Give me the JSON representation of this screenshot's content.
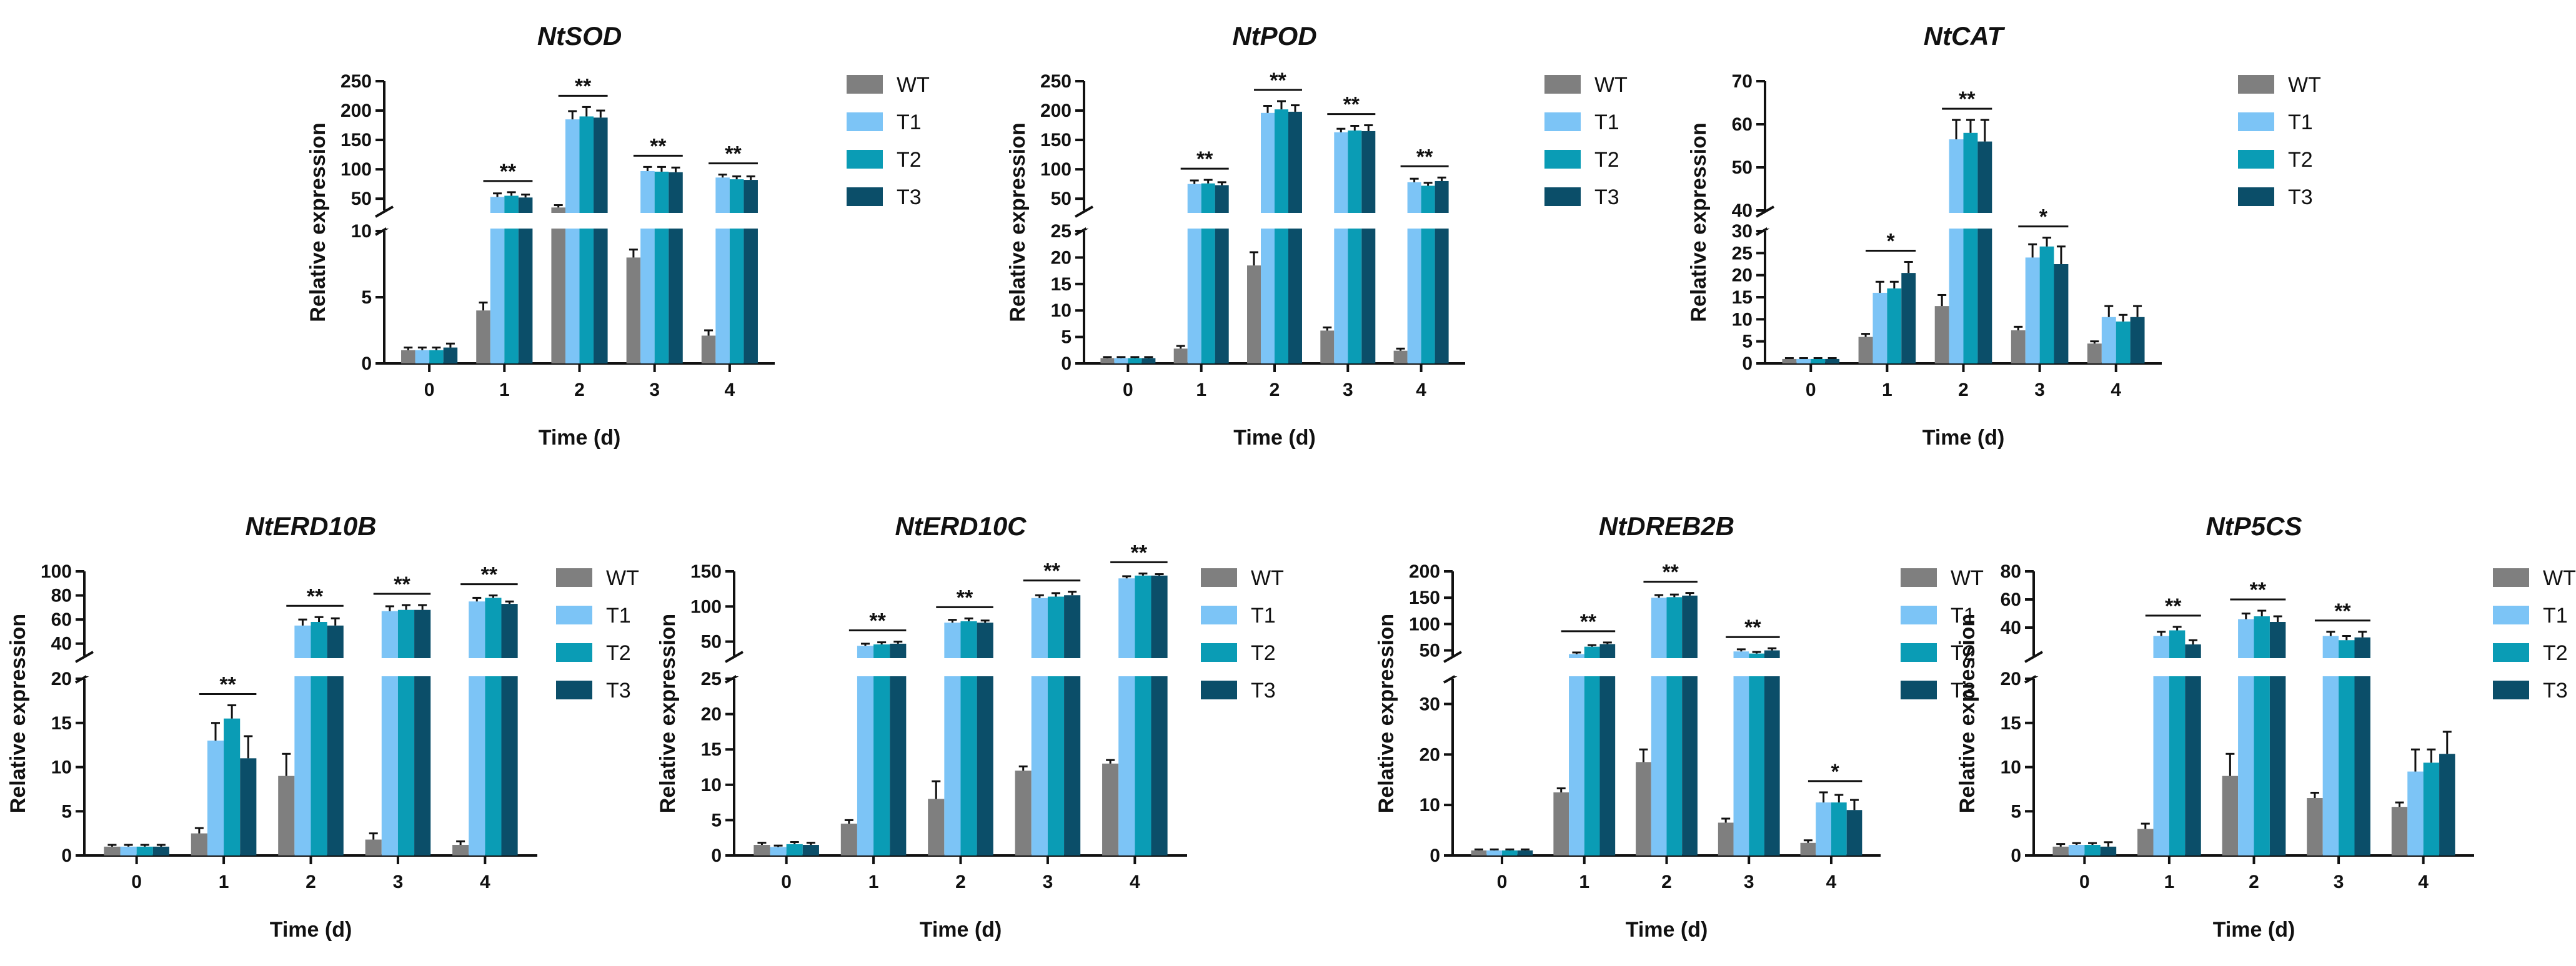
{
  "chart_data": [
    {
      "type": "bar",
      "title": "NtSOD",
      "xlabel": "Time (d)",
      "ylabel": "Relative expression",
      "categories": [
        "0",
        "1",
        "2",
        "3",
        "4"
      ],
      "series": [
        {
          "name": "WT",
          "color": "#7f7f7f",
          "values": [
            1.0,
            4.0,
            35,
            8.0,
            2.1
          ],
          "errors": [
            0.2,
            0.6,
            4,
            0.6,
            0.4
          ]
        },
        {
          "name": "T1",
          "color": "#7cc4f6",
          "values": [
            1.0,
            53,
            185,
            97,
            86
          ],
          "errors": [
            0.2,
            6,
            14,
            7,
            5
          ]
        },
        {
          "name": "T2",
          "color": "#0a9cb5",
          "values": [
            1.0,
            55,
            190,
            96,
            83
          ],
          "errors": [
            0.2,
            6,
            16,
            8,
            5
          ]
        },
        {
          "name": "T3",
          "color": "#0b4e69",
          "values": [
            1.2,
            52,
            188,
            95,
            82
          ],
          "errors": [
            0.3,
            5,
            12,
            8,
            6
          ]
        }
      ],
      "y_break": {
        "lower_range": [
          0,
          10
        ],
        "upper_range": [
          30,
          250
        ]
      },
      "yticks_lower": [
        "0",
        "5",
        "10"
      ],
      "yticks_upper": [
        "50",
        "100",
        "150",
        "200",
        "250"
      ],
      "significance": [
        {
          "category": "1",
          "label": "**"
        },
        {
          "category": "2",
          "label": "**"
        },
        {
          "category": "3",
          "label": "**"
        },
        {
          "category": "4",
          "label": "**"
        }
      ],
      "legend": "right"
    },
    {
      "type": "bar",
      "title": "NtPOD",
      "xlabel": "Time (d)",
      "ylabel": "Relative expression",
      "categories": [
        "0",
        "1",
        "2",
        "3",
        "4"
      ],
      "series": [
        {
          "name": "WT",
          "color": "#7f7f7f",
          "values": [
            1.0,
            2.8,
            18.5,
            6.2,
            2.4
          ],
          "errors": [
            0.2,
            0.5,
            2.5,
            0.6,
            0.4
          ]
        },
        {
          "name": "T1",
          "color": "#7cc4f6",
          "values": [
            1.0,
            75,
            196,
            163,
            78
          ],
          "errors": [
            0.2,
            6,
            12,
            6,
            6
          ]
        },
        {
          "name": "T2",
          "color": "#0a9cb5",
          "values": [
            1.0,
            76,
            202,
            166,
            72
          ],
          "errors": [
            0.2,
            6,
            14,
            8,
            5
          ]
        },
        {
          "name": "T3",
          "color": "#0b4e69",
          "values": [
            1.0,
            73,
            198,
            165,
            80
          ],
          "errors": [
            0.2,
            5,
            11,
            10,
            6
          ]
        }
      ],
      "y_break": {
        "lower_range": [
          0,
          25
        ],
        "upper_range": [
          30,
          250
        ]
      },
      "yticks_lower": [
        "0",
        "5",
        "10",
        "15",
        "20",
        "25"
      ],
      "yticks_upper": [
        "50",
        "100",
        "150",
        "200",
        "250"
      ],
      "significance": [
        {
          "category": "1",
          "label": "**"
        },
        {
          "category": "2",
          "label": "**"
        },
        {
          "category": "3",
          "label": "**"
        },
        {
          "category": "4",
          "label": "**"
        }
      ],
      "legend": "right"
    },
    {
      "type": "bar",
      "title": "NtCAT",
      "xlabel": "Time (d)",
      "ylabel": "Relative expression",
      "categories": [
        "0",
        "1",
        "2",
        "3",
        "4"
      ],
      "series": [
        {
          "name": "WT",
          "color": "#7f7f7f",
          "values": [
            1.0,
            6.0,
            13.0,
            7.5,
            4.5
          ],
          "errors": [
            0.2,
            0.7,
            2.5,
            0.8,
            0.5
          ]
        },
        {
          "name": "T1",
          "color": "#7cc4f6",
          "values": [
            1.0,
            16,
            56.5,
            24,
            10.5
          ],
          "errors": [
            0.2,
            2.5,
            4.5,
            3,
            2.5
          ]
        },
        {
          "name": "T2",
          "color": "#0a9cb5",
          "values": [
            1.0,
            17,
            58,
            26.5,
            9.5
          ],
          "errors": [
            0.2,
            1.5,
            3,
            2,
            1.5
          ]
        },
        {
          "name": "T3",
          "color": "#0b4e69",
          "values": [
            1.0,
            20.5,
            56,
            22.5,
            10.5
          ],
          "errors": [
            0.2,
            2.5,
            5,
            4,
            2.5
          ]
        }
      ],
      "y_break": {
        "lower_range": [
          0,
          30
        ],
        "upper_range": [
          40,
          70
        ]
      },
      "yticks_lower": [
        "0",
        "5",
        "10",
        "15",
        "20",
        "25",
        "30"
      ],
      "yticks_upper": [
        "40",
        "50",
        "60",
        "70"
      ],
      "significance": [
        {
          "category": "1",
          "label": "*"
        },
        {
          "category": "2",
          "label": "**"
        },
        {
          "category": "3",
          "label": "*"
        }
      ],
      "legend": "right"
    },
    {
      "type": "bar",
      "title": "NtERD10B",
      "xlabel": "Time (d)",
      "ylabel": "Relative expression",
      "categories": [
        "0",
        "1",
        "2",
        "3",
        "4"
      ],
      "series": [
        {
          "name": "WT",
          "color": "#7f7f7f",
          "values": [
            1.0,
            2.5,
            9.0,
            1.8,
            1.2
          ],
          "errors": [
            0.2,
            0.6,
            2.5,
            0.7,
            0.4
          ]
        },
        {
          "name": "T1",
          "color": "#7cc4f6",
          "values": [
            1.0,
            13.0,
            55,
            67,
            75
          ],
          "errors": [
            0.2,
            2.0,
            5,
            4,
            3
          ]
        },
        {
          "name": "T2",
          "color": "#0a9cb5",
          "values": [
            1.0,
            15.5,
            58,
            68,
            78
          ],
          "errors": [
            0.2,
            1.5,
            4,
            4,
            2
          ]
        },
        {
          "name": "T3",
          "color": "#0b4e69",
          "values": [
            1.0,
            11.0,
            55,
            68,
            73
          ],
          "errors": [
            0.2,
            2.5,
            6,
            4,
            2
          ]
        }
      ],
      "y_break": {
        "lower_range": [
          0,
          20
        ],
        "upper_range": [
          30,
          100
        ]
      },
      "yticks_lower": [
        "0",
        "5",
        "10",
        "15",
        "20"
      ],
      "yticks_upper": [
        "40",
        "60",
        "80",
        "100"
      ],
      "significance": [
        {
          "category": "1",
          "label": "**"
        },
        {
          "category": "2",
          "label": "**"
        },
        {
          "category": "3",
          "label": "**"
        },
        {
          "category": "4",
          "label": "**"
        }
      ],
      "legend": "right"
    },
    {
      "type": "bar",
      "title": "NtERD10C",
      "xlabel": "Time (d)",
      "ylabel": "Relative expression",
      "categories": [
        "0",
        "1",
        "2",
        "3",
        "4"
      ],
      "series": [
        {
          "name": "WT",
          "color": "#7f7f7f",
          "values": [
            1.5,
            4.5,
            8.0,
            12.0,
            13.0
          ],
          "errors": [
            0.3,
            0.5,
            2.5,
            0.6,
            0.5
          ]
        },
        {
          "name": "T1",
          "color": "#7cc4f6",
          "values": [
            1.2,
            44,
            77,
            112,
            140
          ],
          "errors": [
            0.2,
            3,
            4,
            4,
            3
          ]
        },
        {
          "name": "T2",
          "color": "#0a9cb5",
          "values": [
            1.6,
            46,
            79,
            114,
            144
          ],
          "errors": [
            0.3,
            3,
            4,
            5,
            3
          ]
        },
        {
          "name": "T3",
          "color": "#0b4e69",
          "values": [
            1.5,
            47,
            77,
            116,
            144
          ],
          "errors": [
            0.3,
            3,
            3,
            5,
            2
          ]
        }
      ],
      "y_break": {
        "lower_range": [
          0,
          25
        ],
        "upper_range": [
          30,
          150
        ]
      },
      "yticks_lower": [
        "0",
        "5",
        "10",
        "15",
        "20",
        "25"
      ],
      "yticks_upper": [
        "50",
        "100",
        "150"
      ],
      "significance": [
        {
          "category": "1",
          "label": "**"
        },
        {
          "category": "2",
          "label": "**"
        },
        {
          "category": "3",
          "label": "**"
        },
        {
          "category": "4",
          "label": "**"
        }
      ],
      "legend": "right"
    },
    {
      "type": "bar",
      "title": "NtDREB2B",
      "xlabel": "Time (d)",
      "ylabel": "Relative expression",
      "categories": [
        "0",
        "1",
        "2",
        "3",
        "4"
      ],
      "series": [
        {
          "name": "WT",
          "color": "#7f7f7f",
          "values": [
            1.0,
            12.5,
            18.5,
            6.5,
            2.5
          ],
          "errors": [
            0.2,
            0.8,
            2.5,
            0.8,
            0.5
          ]
        },
        {
          "name": "T1",
          "color": "#7cc4f6",
          "values": [
            1.0,
            43,
            150,
            48,
            10.5
          ],
          "errors": [
            0.2,
            3,
            5,
            4,
            2
          ]
        },
        {
          "name": "T2",
          "color": "#0a9cb5",
          "values": [
            1.0,
            57,
            151,
            44,
            10.5
          ],
          "errors": [
            0.2,
            3,
            5,
            3,
            1.5
          ]
        },
        {
          "name": "T3",
          "color": "#0b4e69",
          "values": [
            1.0,
            62,
            154,
            50,
            9.0
          ],
          "errors": [
            0.2,
            3,
            5,
            4,
            2
          ]
        }
      ],
      "y_break": {
        "lower_range": [
          0,
          35
        ],
        "upper_range": [
          40,
          200
        ]
      },
      "yticks_lower": [
        "0",
        "10",
        "20",
        "30"
      ],
      "yticks_upper": [
        "50",
        "100",
        "150",
        "200"
      ],
      "significance": [
        {
          "category": "1",
          "label": "**"
        },
        {
          "category": "2",
          "label": "**"
        },
        {
          "category": "3",
          "label": "**"
        },
        {
          "category": "4",
          "label": "*"
        }
      ],
      "legend": "right"
    },
    {
      "type": "bar",
      "title": "NtP5CS",
      "xlabel": "Time (d)",
      "ylabel": "Relative expression",
      "categories": [
        "0",
        "1",
        "2",
        "3",
        "4"
      ],
      "series": [
        {
          "name": "WT",
          "color": "#7f7f7f",
          "values": [
            1.0,
            3.0,
            9.0,
            6.5,
            5.5
          ],
          "errors": [
            0.3,
            0.6,
            2.5,
            0.6,
            0.5
          ]
        },
        {
          "name": "T1",
          "color": "#7cc4f6",
          "values": [
            1.2,
            34,
            46,
            34,
            9.5
          ],
          "errors": [
            0.2,
            3,
            4,
            3,
            2.5
          ]
        },
        {
          "name": "T2",
          "color": "#0a9cb5",
          "values": [
            1.2,
            38,
            48,
            31,
            10.5
          ],
          "errors": [
            0.2,
            2.5,
            4,
            3,
            1.5
          ]
        },
        {
          "name": "T3",
          "color": "#0b4e69",
          "values": [
            1.0,
            28,
            44,
            33,
            11.5
          ],
          "errors": [
            0.5,
            3,
            4,
            4,
            2.5
          ]
        }
      ],
      "y_break": {
        "lower_range": [
          0,
          20
        ],
        "upper_range": [
          20,
          80
        ]
      },
      "yticks_lower": [
        "0",
        "5",
        "10",
        "15"
      ],
      "yticks_upper": [
        "20",
        "40",
        "60",
        "80"
      ],
      "significance": [
        {
          "category": "1",
          "label": "**"
        },
        {
          "category": "2",
          "label": "**"
        },
        {
          "category": "3",
          "label": "**"
        }
      ],
      "legend": "right"
    }
  ]
}
